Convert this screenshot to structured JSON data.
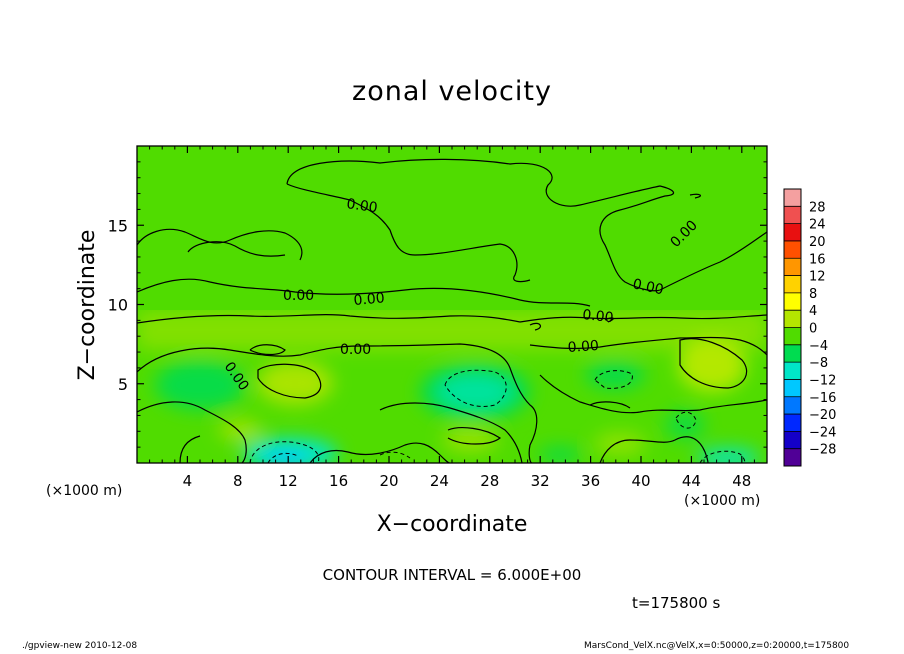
{
  "chart_data": {
    "type": "heatmap",
    "title": "zonal velocity",
    "xlabel": "X−coordinate",
    "ylabel": "Z−coordinate",
    "x_unit_label": "(×1000 m)",
    "y_unit_label": "(×1000 m)",
    "xlim": [
      0,
      50
    ],
    "ylim": [
      0,
      20
    ],
    "x_ticks": [
      4,
      8,
      12,
      16,
      20,
      24,
      28,
      32,
      36,
      40,
      44,
      48
    ],
    "y_ticks": [
      5,
      10,
      15
    ],
    "contour_interval_text": "CONTOUR INTERVAL = 6.000E+00",
    "contour_label": "0.00",
    "time_text": "t=175800 s",
    "colorbar": {
      "labels": [
        "28",
        "24",
        "20",
        "16",
        "12",
        "8",
        "4",
        "0",
        "−4",
        "−8",
        "−12",
        "−16",
        "−20",
        "−24",
        "−28"
      ],
      "colors": [
        "#f4a0a0",
        "#f05050",
        "#e81010",
        "#ff5000",
        "#ff9600",
        "#ffd200",
        "#ffff00",
        "#b4e600",
        "#50dc00",
        "#00dc50",
        "#00e6c8",
        "#00c8ff",
        "#0078ff",
        "#0028ff",
        "#1400c8",
        "#500096"
      ]
    }
  },
  "footer": {
    "left": "./gpview-new   2010-12-08",
    "right": "MarsCond_VelX.nc@VelX,x=0:50000,z=0:20000,t=175800"
  }
}
